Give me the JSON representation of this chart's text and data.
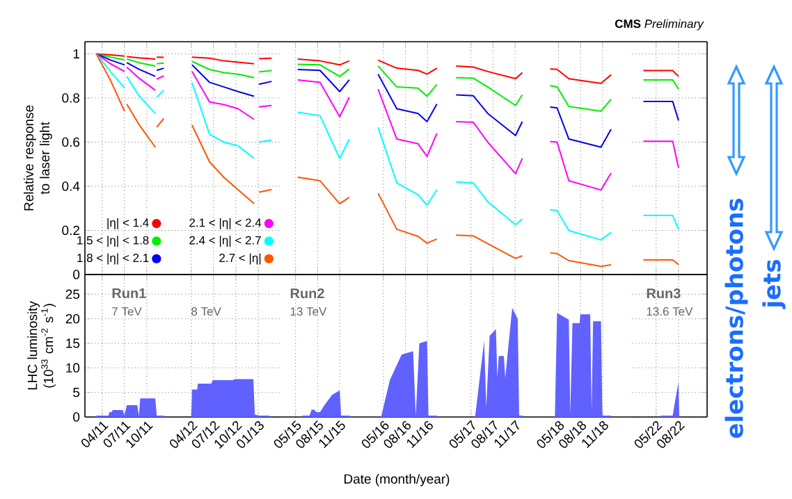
{
  "chart_data": [
    {
      "type": "line",
      "ylabel": "Relative response to laser light",
      "grid": true,
      "tick_labels": "y",
      "legend": "bottom right",
      "x": [
        "2011-03-08",
        "2011-05-05",
        "2011-07-02",
        "2011-07-06",
        "2011-07-11",
        "2011-08-30",
        "2011-11-05",
        "2011-11-08",
        "2011-11-11",
        "2011-12-10",
        "2012-02-01",
        "2012-04-04",
        "2012-06-15",
        "2012-08-13",
        "2012-10-10",
        "2012-12-15",
        "2012-12-25",
        "2013-01-04",
        "2013-02-25"
      ],
      "series": [
        {
          "name": "|η| < 1.4",
          "color": "#ff0000",
          "values": [
            1.0,
            0.995,
            0.99,
            null,
            0.987,
            0.982,
            0.976,
            null,
            0.985,
            0.984,
            null,
            0.985,
            0.98,
            0.968,
            0.962,
            0.955,
            null,
            0.978,
            0.98
          ]
        },
        {
          "name": "1.5 < |η| < 1.8",
          "color": "#00ee00",
          "values": [
            1.0,
            0.985,
            0.973,
            null,
            0.977,
            0.96,
            0.945,
            null,
            0.955,
            0.958,
            null,
            0.966,
            0.929,
            0.915,
            0.908,
            0.892,
            null,
            0.918,
            0.924
          ]
        },
        {
          "name": "1.8 < |η| < 2.1",
          "color": "#0000ee",
          "values": [
            1.0,
            0.972,
            0.95,
            null,
            0.96,
            0.93,
            0.898,
            null,
            0.925,
            0.935,
            null,
            0.95,
            0.871,
            0.85,
            0.829,
            0.808,
            null,
            0.862,
            0.875
          ]
        },
        {
          "name": "2.1 < |η| < 2.4",
          "color": "#ff00ff",
          "values": [
            1.0,
            0.955,
            0.92,
            null,
            0.94,
            0.89,
            0.835,
            null,
            0.885,
            0.9,
            null,
            0.92,
            0.782,
            0.77,
            0.751,
            0.703,
            null,
            0.76,
            0.766
          ]
        },
        {
          "name": "2.4 < |η| < 2.7",
          "color": "#00ffff",
          "values": [
            1.0,
            0.92,
            0.845,
            null,
            0.898,
            0.81,
            0.73,
            null,
            0.803,
            0.835,
            null,
            0.87,
            0.635,
            0.6,
            0.583,
            0.526,
            null,
            0.6,
            0.609
          ]
        },
        {
          "name": "2.7 < |η|",
          "color": "#ff5500",
          "values": [
            1.0,
            0.88,
            0.74,
            null,
            0.772,
            0.68,
            0.577,
            null,
            0.667,
            0.707,
            null,
            0.677,
            0.51,
            0.44,
            0.384,
            0.321,
            null,
            0.373,
            0.385
          ]
        }
      ],
      "xlim": [
        "2011-01-20",
        "2013-04-08"
      ],
      "ylim": [
        0,
        1.055
      ],
      "xticks": [
        {
          "value": "2011-04-01",
          "label": null
        },
        {
          "value": "2011-07-01",
          "label": null
        },
        {
          "value": "2011-10-01",
          "label": null
        },
        {
          "value": "2012-04-01",
          "label": null
        },
        {
          "value": "2012-07-01",
          "label": null
        },
        {
          "value": "2012-10-01",
          "label": null
        },
        {
          "value": "2013-01-01",
          "label": null
        }
      ],
      "yticks": [
        0,
        0.2,
        0.4,
        0.6,
        0.8,
        1
      ]
    },
    {
      "type": "line",
      "grid": true,
      "tick_labels": false,
      "x": [
        "2015-05-10",
        "2015-08-11",
        "2015-11-01",
        "2015-12-11",
        "2016-02-01",
        "2016-04-09",
        "2016-06-26",
        "2016-09-22",
        "2016-10-30",
        "2016-12-10",
        "2017-01-15",
        "2017-02-28",
        "2017-05-11",
        "2017-07-10",
        "2017-11-03",
        "2017-12-01",
        "2018-01-20",
        "2018-03-27",
        "2018-04-25",
        "2018-06-13",
        "2018-10-25",
        "2018-12-06"
      ],
      "series": [
        {
          "color": "#ff0000",
          "values": [
            0.976,
            0.968,
            0.95,
            0.968,
            null,
            0.971,
            0.935,
            0.925,
            0.908,
            0.935,
            null,
            0.945,
            0.94,
            0.92,
            0.887,
            0.915,
            null,
            0.931,
            0.93,
            0.887,
            0.866,
            0.905
          ]
        },
        {
          "color": "#00ee00",
          "values": [
            0.953,
            0.95,
            0.898,
            0.931,
            null,
            0.945,
            0.85,
            0.845,
            0.808,
            0.861,
            null,
            0.892,
            0.89,
            0.85,
            0.766,
            0.814,
            null,
            0.856,
            0.85,
            0.761,
            0.74,
            0.795
          ]
        },
        {
          "color": "#0000ee",
          "values": [
            0.929,
            0.925,
            0.829,
            0.882,
            null,
            0.908,
            0.751,
            0.73,
            0.693,
            0.772,
            null,
            0.814,
            0.81,
            0.73,
            0.63,
            0.693,
            null,
            0.759,
            0.755,
            0.614,
            0.577,
            0.658
          ]
        },
        {
          "color": "#ff00ff",
          "values": [
            0.882,
            0.871,
            0.715,
            0.803,
            null,
            0.84,
            0.614,
            0.593,
            0.535,
            0.64,
            null,
            0.693,
            0.69,
            0.6,
            0.457,
            0.526,
            null,
            0.602,
            0.6,
            0.425,
            0.383,
            0.46
          ]
        },
        {
          "color": "#00ffff",
          "values": [
            0.735,
            0.72,
            0.526,
            0.614,
            null,
            0.667,
            0.415,
            0.362,
            0.315,
            0.384,
            null,
            0.42,
            0.415,
            0.33,
            0.226,
            0.252,
            null,
            0.294,
            0.29,
            0.199,
            0.157,
            0.191
          ]
        },
        {
          "color": "#ff5500",
          "values": [
            0.441,
            0.425,
            0.321,
            0.35,
            null,
            0.368,
            0.205,
            0.173,
            0.142,
            0.161,
            null,
            0.179,
            0.175,
            0.14,
            0.073,
            0.085,
            null,
            0.098,
            0.095,
            0.063,
            0.037,
            0.044
          ]
        }
      ],
      "xlim": [
        "2015-03-05",
        "2019-03-03"
      ],
      "ylim": [
        0,
        1.055
      ],
      "xticks": [
        {
          "value": "2015-05-01",
          "label": null
        },
        {
          "value": "2015-08-01",
          "label": null
        },
        {
          "value": "2015-11-01",
          "label": null
        },
        {
          "value": "2016-05-01",
          "label": null
        },
        {
          "value": "2016-08-01",
          "label": null
        },
        {
          "value": "2016-11-01",
          "label": null
        },
        {
          "value": "2017-05-01",
          "label": null
        },
        {
          "value": "2017-08-01",
          "label": null
        },
        {
          "value": "2017-11-01",
          "label": null
        },
        {
          "value": "2018-05-01",
          "label": null
        },
        {
          "value": "2018-08-01",
          "label": null
        },
        {
          "value": "2018-11-01",
          "label": null
        }
      ],
      "yticks": [
        0,
        0.2,
        0.4,
        0.6,
        0.8,
        1
      ]
    },
    {
      "type": "line",
      "title": "**CMS** *Preliminary*",
      "grid": true,
      "tick_labels": false,
      "annotations": [
        "electrons/photons",
        "jets"
      ],
      "x": [
        "2022-03-10",
        "2022-07-08",
        "2022-08-01"
      ],
      "series": [
        {
          "color": "#ff0000",
          "values": [
            0.924,
            0.924,
            0.898
          ]
        },
        {
          "color": "#00ee00",
          "values": [
            0.882,
            0.882,
            0.84
          ]
        },
        {
          "color": "#0000ee",
          "values": [
            0.784,
            0.784,
            0.698
          ]
        },
        {
          "color": "#ff00ff",
          "values": [
            0.604,
            0.604,
            0.483
          ]
        },
        {
          "color": "#00ffff",
          "values": [
            0.268,
            0.268,
            0.205
          ]
        },
        {
          "color": "#ff5500",
          "values": [
            0.066,
            0.066,
            0.045
          ]
        }
      ],
      "xlim": [
        "2022-01-22",
        "2022-11-26"
      ],
      "ylim": [
        0,
        1.055
      ],
      "xticks": [
        {
          "value": "2022-05-01",
          "label": null
        },
        {
          "value": "2022-08-01",
          "label": null
        }
      ],
      "yticks": [
        0,
        0.2,
        0.4,
        0.6,
        0.8,
        1
      ]
    },
    {
      "type": "area",
      "ylabel": "LHC luminosity (10$^{33}$ cm$^{-2}$ s$^{-1}$)",
      "grid": true,
      "color": "#6161ff",
      "annotations": [
        "Run1",
        "7 TeV",
        "8 TeV"
      ],
      "x": [
        "2011-03-05",
        "2011-03-08",
        "2011-04-27",
        "2011-04-30",
        "2011-05-10",
        "2011-05-14",
        "2011-06-25",
        "2011-07-01",
        "2011-07-11",
        "2011-08-23",
        "2011-08-30",
        "2011-09-04",
        "2011-11-05",
        "2011-11-11",
        "2011-12-10",
        "2011-12-13",
        "2012-04-01",
        "2012-04-04",
        "2012-04-25",
        "2012-04-28",
        "2012-06-22",
        "2012-06-28",
        "2012-09-20",
        "2012-09-26",
        "2012-12-12",
        "2012-12-18",
        "2013-01-04",
        "2013-02-15",
        "2013-02-18"
      ],
      "values": [
        0,
        0.3,
        0.3,
        1.0,
        1.0,
        1.4,
        1.4,
        0.3,
        2.4,
        2.4,
        0.3,
        3.8,
        3.8,
        0.3,
        0.3,
        0,
        0,
        5.6,
        5.6,
        6.8,
        6.8,
        7.5,
        7.5,
        7.7,
        7.7,
        0.5,
        0.3,
        0.3,
        0
      ],
      "xlim": [
        "2011-01-20",
        "2013-04-08"
      ],
      "ylim": [
        0,
        29
      ],
      "xticks": [
        {
          "value": "2011-04-01",
          "label": "04/11"
        },
        {
          "value": "2011-07-01",
          "label": "07/11"
        },
        {
          "value": "2011-10-01",
          "label": "10/11"
        },
        {
          "value": "2012-04-01",
          "label": "04/12"
        },
        {
          "value": "2012-07-01",
          "label": "07/12"
        },
        {
          "value": "2012-10-01",
          "label": "10/12"
        },
        {
          "value": "2013-01-01",
          "label": "01/13"
        }
      ],
      "yticks": [
        0,
        5,
        10,
        15,
        20,
        25
      ]
    },
    {
      "type": "area",
      "xlabel": "Date (month/year)",
      "grid": true,
      "tick_labels": "x",
      "color": "#6161ff",
      "annotations": [
        "Run2",
        "13 TeV"
      ],
      "x": [
        "2015-05-27",
        "2015-05-30",
        "2015-06-28",
        "2015-07-07",
        "2015-07-18",
        "2015-07-27",
        "2015-08-11",
        "2015-08-31",
        "2015-09-30",
        "2015-11-01",
        "2015-11-07",
        "2015-12-14",
        "2015-12-17",
        "2016-04-20",
        "2016-04-23",
        "2016-05-28",
        "2016-07-16",
        "2016-09-02",
        "2016-09-13",
        "2016-09-28",
        "2016-10-30",
        "2016-11-05",
        "2016-12-10",
        "2016-12-13",
        "2017-05-16",
        "2017-05-19",
        "2017-06-25",
        "2017-07-04",
        "2017-07-18",
        "2017-08-13",
        "2017-08-19",
        "2017-08-25",
        "2017-09-15",
        "2017-09-21",
        "2017-10-20",
        "2017-11-12",
        "2017-11-18",
        "2017-12-03",
        "2017-12-06",
        "2018-04-13",
        "2018-04-16",
        "2018-04-25",
        "2018-06-13",
        "2018-06-19",
        "2018-06-28",
        "2018-07-28",
        "2018-07-31",
        "2018-09-10",
        "2018-09-16",
        "2018-09-22",
        "2018-10-25",
        "2018-10-31",
        "2018-12-06",
        "2018-12-09"
      ],
      "values": [
        0,
        0.3,
        0.3,
        1.5,
        1.5,
        1.0,
        1.0,
        2.5,
        4.5,
        5.4,
        0.3,
        0.3,
        0,
        0,
        0.3,
        7.5,
        12.7,
        13.4,
        0.3,
        15.0,
        15.5,
        0.3,
        0.3,
        0,
        0,
        0.3,
        15.5,
        2,
        16.5,
        17.9,
        8,
        12.4,
        12.4,
        8,
        22.2,
        20,
        0.3,
        0.3,
        0,
        0,
        0.3,
        21.2,
        19.8,
        0.5,
        19.1,
        19.1,
        20.9,
        20.9,
        1,
        19.5,
        19.5,
        0.3,
        0.3,
        0
      ],
      "xlim": [
        "2015-03-05",
        "2019-03-03"
      ],
      "ylim": [
        0,
        29
      ],
      "xticks": [
        {
          "value": "2015-05-01",
          "label": "05/15"
        },
        {
          "value": "2015-08-01",
          "label": "08/15"
        },
        {
          "value": "2015-11-01",
          "label": "11/15"
        },
        {
          "value": "2016-05-01",
          "label": "05/16"
        },
        {
          "value": "2016-08-01",
          "label": "08/16"
        },
        {
          "value": "2016-11-01",
          "label": "11/16"
        },
        {
          "value": "2017-05-01",
          "label": "05/17"
        },
        {
          "value": "2017-08-01",
          "label": "08/17"
        },
        {
          "value": "2017-11-01",
          "label": "11/17"
        },
        {
          "value": "2018-05-01",
          "label": "05/18"
        },
        {
          "value": "2018-08-01",
          "label": "08/18"
        },
        {
          "value": "2018-11-01",
          "label": "11/18"
        }
      ],
      "yticks": [
        0,
        5,
        10,
        15,
        20,
        25
      ]
    },
    {
      "type": "area",
      "grid": true,
      "tick_labels": "x",
      "color": "#6161ff",
      "annotations": [
        "Run3",
        "13.6 TeV"
      ],
      "x": [
        "2022-05-18",
        "2022-05-21",
        "2022-07-08",
        "2022-07-17",
        "2022-08-01",
        "2022-08-04"
      ],
      "values": [
        0,
        0.3,
        0.3,
        3,
        7.1,
        0
      ],
      "xlim": [
        "2022-01-22",
        "2022-11-26"
      ],
      "ylim": [
        0,
        29
      ],
      "xticks": [
        {
          "value": "2022-05-01",
          "label": "05/22"
        },
        {
          "value": "2022-08-01",
          "label": "08/22"
        }
      ],
      "yticks": [
        0,
        5,
        10,
        15,
        20,
        25
      ]
    }
  ]
}
